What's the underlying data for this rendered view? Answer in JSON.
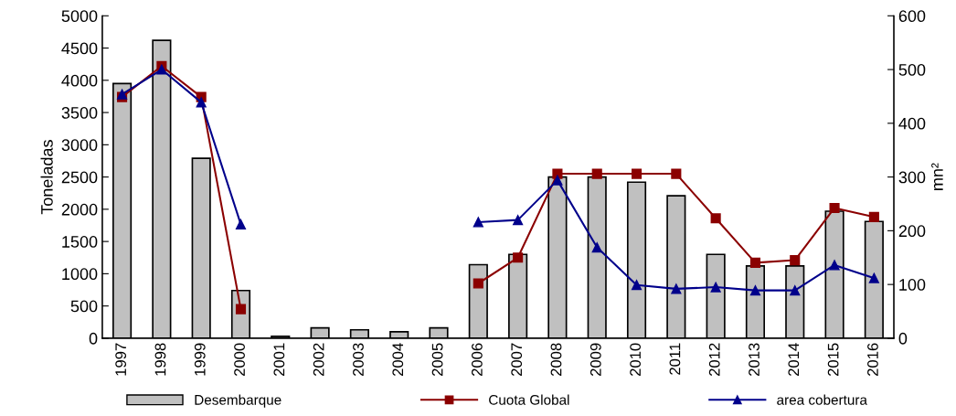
{
  "chart_data": {
    "type": "bar",
    "ylabel": "Toneladas",
    "y2label": "mn²",
    "categories": [
      "1997",
      "1998",
      "1999",
      "2000",
      "2001",
      "2002",
      "2003",
      "2004",
      "2005",
      "2006",
      "2007",
      "2008",
      "2009",
      "2010",
      "2011",
      "2012",
      "2013",
      "2014",
      "2015",
      "2016"
    ],
    "series": [
      {
        "name": "Desembarque",
        "color": "#c0c0c0",
        "values": [
          3950,
          4620,
          2790,
          740,
          30,
          160,
          130,
          100,
          160,
          1140,
          1300,
          2500,
          2500,
          2420,
          2210,
          1300,
          1120,
          1120,
          1970,
          1810
        ]
      },
      {
        "name": "Cuota Global",
        "type": "line",
        "color": "#8b0000",
        "marker": "square",
        "values": [
          3740,
          4220,
          3740,
          450,
          null,
          null,
          null,
          null,
          null,
          850,
          1250,
          2550,
          2550,
          2550,
          2550,
          1860,
          1170,
          1210,
          2020,
          1880
        ]
      },
      {
        "name": "area cobertura",
        "type": "line",
        "color": "#00008b",
        "marker": "triangle",
        "axis": "y2",
        "values": [
          454,
          500,
          439,
          212,
          null,
          null,
          null,
          null,
          null,
          216,
          220,
          294,
          169,
          99,
          92,
          95,
          89,
          89,
          136,
          112
        ]
      }
    ],
    "ylim": [
      0,
      5000
    ],
    "yticks": [
      0,
      500,
      1000,
      1500,
      2000,
      2500,
      3000,
      3500,
      4000,
      4500,
      5000
    ],
    "y2lim": [
      0,
      600
    ],
    "y2ticks": [
      0,
      100,
      200,
      300,
      400,
      500,
      600
    ],
    "grid": false,
    "legend": "bottom"
  }
}
